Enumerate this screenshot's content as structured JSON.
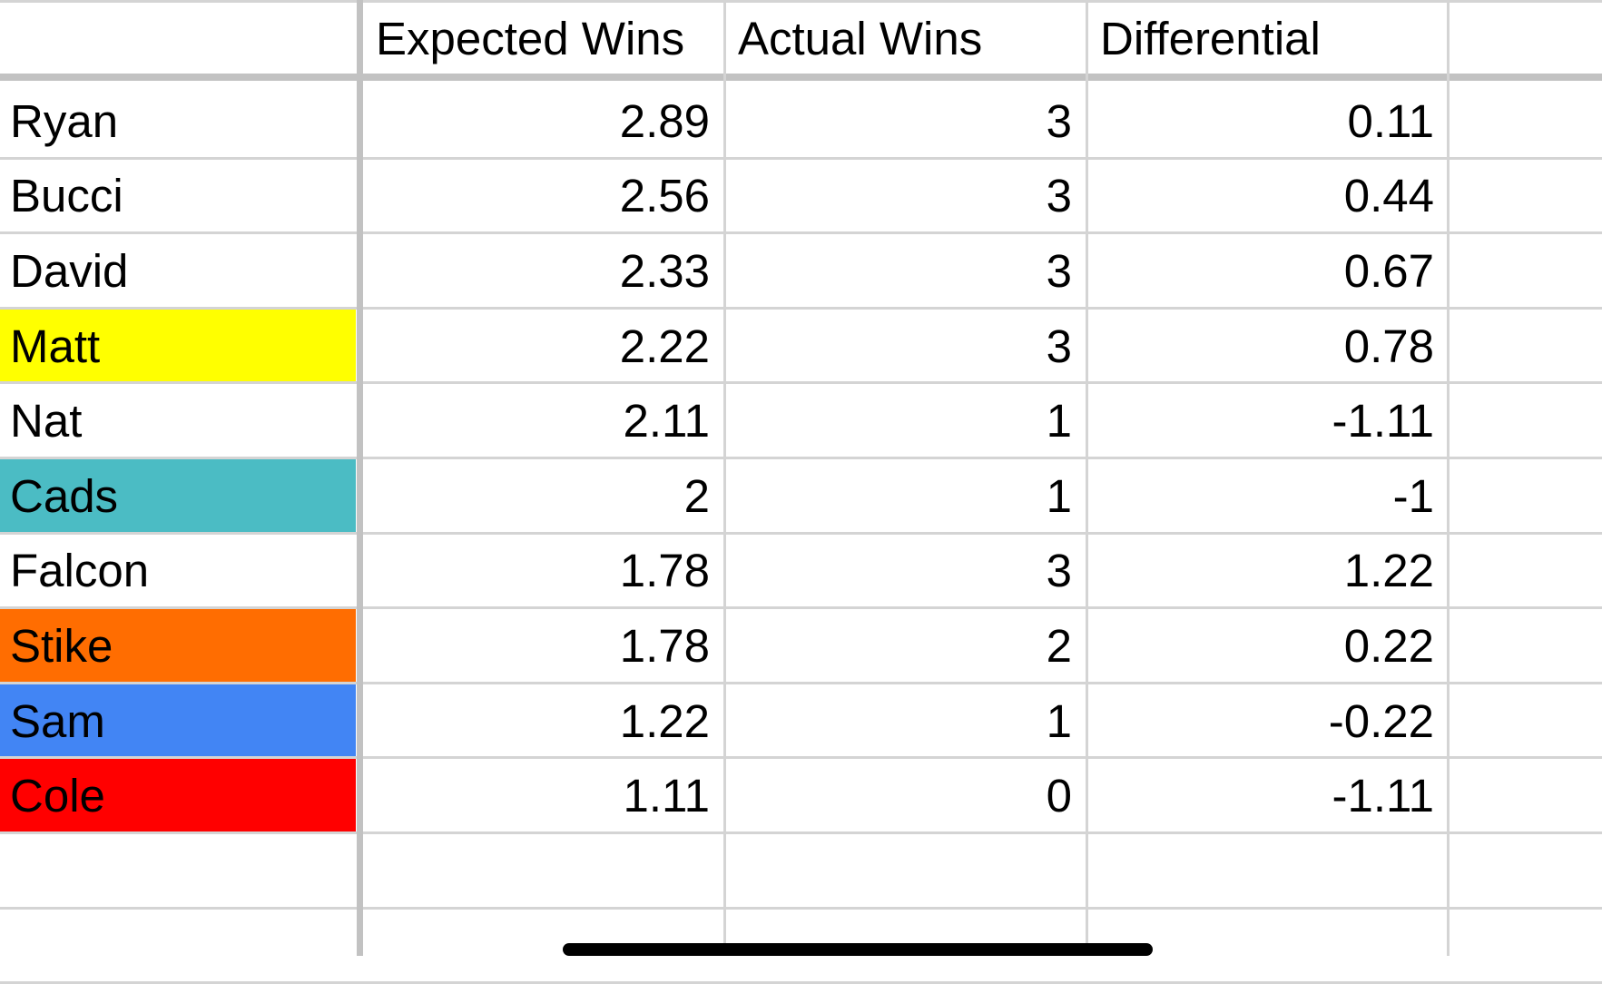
{
  "table": {
    "headers": [
      "",
      "Expected Wins",
      "Actual Wins",
      "Differential"
    ],
    "rows": [
      {
        "name": "Ryan",
        "expected": "2.89",
        "actual": "3",
        "differential": "0.11",
        "fill": "#ffffff"
      },
      {
        "name": "Bucci",
        "expected": "2.56",
        "actual": "3",
        "differential": "0.44",
        "fill": "#ffffff"
      },
      {
        "name": "David",
        "expected": "2.33",
        "actual": "3",
        "differential": "0.67",
        "fill": "#ffffff"
      },
      {
        "name": "Matt",
        "expected": "2.22",
        "actual": "3",
        "differential": "0.78",
        "fill": "#ffff00"
      },
      {
        "name": "Nat",
        "expected": "2.11",
        "actual": "1",
        "differential": "-1.11",
        "fill": "#ffffff"
      },
      {
        "name": "Cads",
        "expected": "2",
        "actual": "1",
        "differential": "-1",
        "fill": "#4bbcc4"
      },
      {
        "name": "Falcon",
        "expected": "1.78",
        "actual": "3",
        "differential": "1.22",
        "fill": "#ffffff"
      },
      {
        "name": "Stike",
        "expected": "1.78",
        "actual": "2",
        "differential": "0.22",
        "fill": "#ff6d01"
      },
      {
        "name": "Sam",
        "expected": "1.22",
        "actual": "1",
        "differential": "-0.22",
        "fill": "#4285f4"
      },
      {
        "name": "Cole",
        "expected": "1.11",
        "actual": "0",
        "differential": "-1.11",
        "fill": "#ff0000"
      }
    ]
  },
  "colors": {
    "gridline": "#d4d4d4",
    "frozen_divider": "#c2c2c2",
    "yellow_highlight": "#ffff00",
    "cyan_highlight": "#4bbcc4",
    "orange_highlight": "#ff6d01",
    "blue_highlight": "#4285f4",
    "red_highlight": "#ff0000"
  }
}
